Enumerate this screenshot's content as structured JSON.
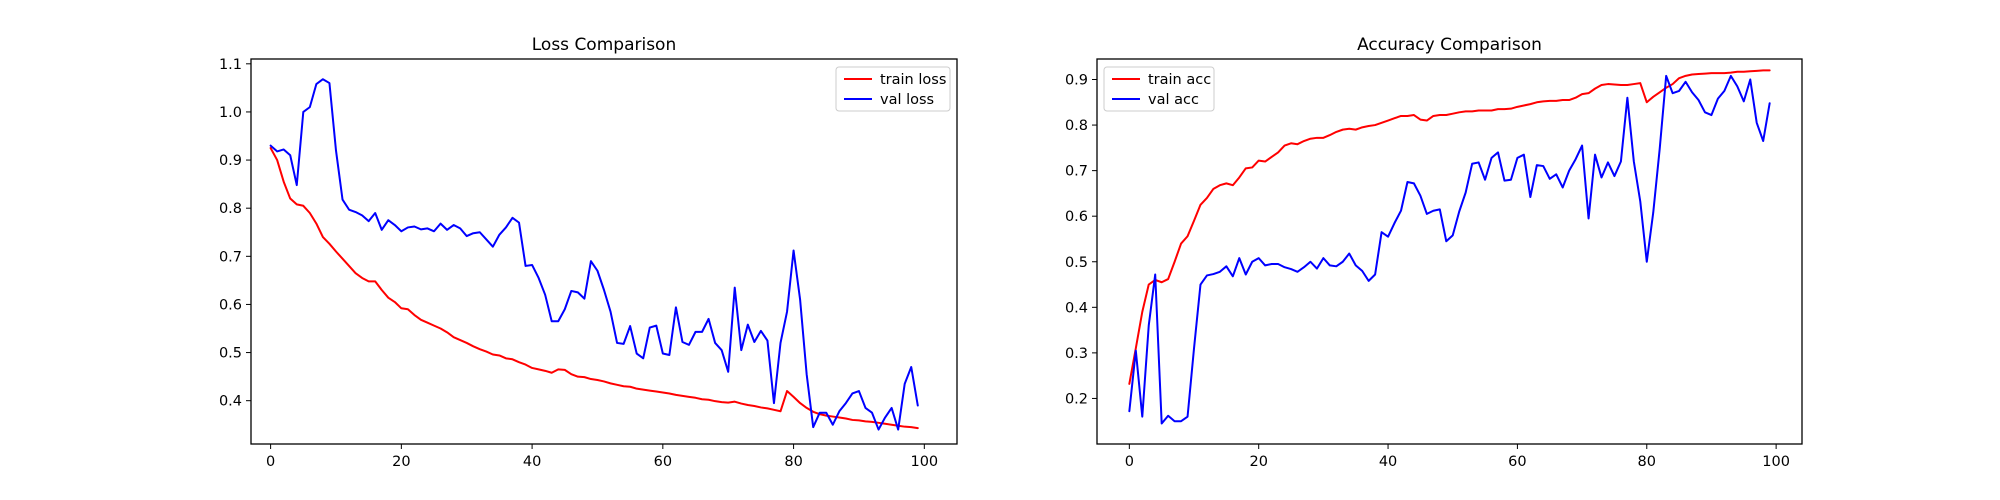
{
  "chart_data": [
    {
      "type": "line",
      "title": "Loss Comparison",
      "xlabel": "",
      "ylabel": "",
      "xlim": [
        -3,
        105
      ],
      "ylim": [
        0.31,
        1.11
      ],
      "xticks": [
        0,
        20,
        40,
        60,
        80,
        100
      ],
      "yticks": [
        0.4,
        0.5,
        0.6,
        0.7,
        0.8,
        0.9,
        1.0,
        1.1
      ],
      "ytick_labels": [
        "0.4",
        "0.5",
        "0.6",
        "0.7",
        "0.8",
        "0.9",
        "1.0",
        "1.1"
      ],
      "legend_position": "top-right",
      "grid": false,
      "series": [
        {
          "name": "train loss",
          "color": "#ff0000",
          "x": [
            0,
            1,
            2,
            3,
            4,
            5,
            6,
            7,
            8,
            9,
            10,
            11,
            12,
            13,
            14,
            15,
            16,
            17,
            18,
            19,
            20,
            21,
            22,
            23,
            24,
            25,
            26,
            27,
            28,
            29,
            30,
            31,
            32,
            33,
            34,
            35,
            36,
            37,
            38,
            39,
            40,
            41,
            42,
            43,
            44,
            45,
            46,
            47,
            48,
            49,
            50,
            51,
            52,
            53,
            54,
            55,
            56,
            57,
            58,
            59,
            60,
            61,
            62,
            63,
            64,
            65,
            66,
            67,
            68,
            69,
            70,
            71,
            72,
            73,
            74,
            75,
            76,
            77,
            78,
            79,
            80,
            81,
            82,
            83,
            84,
            85,
            86,
            87,
            88,
            89,
            90,
            91,
            92,
            93,
            94,
            95,
            96,
            97,
            98,
            99
          ],
          "values": [
            0.925,
            0.9,
            0.855,
            0.82,
            0.808,
            0.805,
            0.79,
            0.768,
            0.74,
            0.726,
            0.71,
            0.695,
            0.68,
            0.665,
            0.655,
            0.648,
            0.648,
            0.63,
            0.614,
            0.605,
            0.592,
            0.59,
            0.578,
            0.568,
            0.562,
            0.556,
            0.55,
            0.542,
            0.532,
            0.526,
            0.52,
            0.513,
            0.507,
            0.502,
            0.496,
            0.494,
            0.488,
            0.486,
            0.48,
            0.475,
            0.468,
            0.465,
            0.462,
            0.458,
            0.465,
            0.464,
            0.455,
            0.45,
            0.449,
            0.445,
            0.443,
            0.44,
            0.436,
            0.433,
            0.43,
            0.429,
            0.425,
            0.423,
            0.421,
            0.419,
            0.417,
            0.415,
            0.412,
            0.41,
            0.408,
            0.406,
            0.403,
            0.402,
            0.399,
            0.397,
            0.396,
            0.398,
            0.394,
            0.391,
            0.389,
            0.386,
            0.384,
            0.381,
            0.378,
            0.42,
            0.408,
            0.395,
            0.385,
            0.377,
            0.372,
            0.369,
            0.367,
            0.365,
            0.363,
            0.36,
            0.359,
            0.357,
            0.356,
            0.354,
            0.352,
            0.35,
            0.348,
            0.346,
            0.345,
            0.343
          ]
        },
        {
          "name": "val loss",
          "color": "#0000ff",
          "x": [
            0,
            1,
            2,
            3,
            4,
            5,
            6,
            7,
            8,
            9,
            10,
            11,
            12,
            13,
            14,
            15,
            16,
            17,
            18,
            19,
            20,
            21,
            22,
            23,
            24,
            25,
            26,
            27,
            28,
            29,
            30,
            31,
            32,
            33,
            34,
            35,
            36,
            37,
            38,
            39,
            40,
            41,
            42,
            43,
            44,
            45,
            46,
            47,
            48,
            49,
            50,
            51,
            52,
            53,
            54,
            55,
            56,
            57,
            58,
            59,
            60,
            61,
            62,
            63,
            64,
            65,
            66,
            67,
            68,
            69,
            70,
            71,
            72,
            73,
            74,
            75,
            76,
            77,
            78,
            79,
            80,
            81,
            82,
            83,
            84,
            85,
            86,
            87,
            88,
            89,
            90,
            91,
            92,
            93,
            94,
            95,
            96,
            97,
            98,
            99
          ],
          "values": [
            0.93,
            0.918,
            0.922,
            0.91,
            0.848,
            1.0,
            1.01,
            1.058,
            1.068,
            1.06,
            0.92,
            0.818,
            0.797,
            0.792,
            0.785,
            0.773,
            0.79,
            0.755,
            0.775,
            0.765,
            0.752,
            0.76,
            0.762,
            0.756,
            0.758,
            0.752,
            0.768,
            0.755,
            0.765,
            0.758,
            0.742,
            0.748,
            0.75,
            0.735,
            0.72,
            0.745,
            0.76,
            0.78,
            0.77,
            0.68,
            0.682,
            0.655,
            0.62,
            0.565,
            0.565,
            0.59,
            0.628,
            0.625,
            0.612,
            0.69,
            0.67,
            0.63,
            0.585,
            0.52,
            0.518,
            0.555,
            0.498,
            0.488,
            0.552,
            0.556,
            0.498,
            0.495,
            0.594,
            0.522,
            0.516,
            0.543,
            0.543,
            0.57,
            0.52,
            0.505,
            0.46,
            0.635,
            0.505,
            0.558,
            0.522,
            0.545,
            0.525,
            0.395,
            0.52,
            0.585,
            0.712,
            0.61,
            0.455,
            0.345,
            0.375,
            0.375,
            0.35,
            0.378,
            0.395,
            0.415,
            0.42,
            0.385,
            0.375,
            0.34,
            0.365,
            0.385,
            0.34,
            0.435,
            0.47,
            0.39
          ]
        }
      ]
    },
    {
      "type": "line",
      "title": "Accuracy Comparison",
      "xlabel": "",
      "ylabel": "",
      "xlim": [
        -5,
        104
      ],
      "ylim": [
        0.1,
        0.945
      ],
      "xticks": [
        0,
        20,
        40,
        60,
        80,
        100
      ],
      "yticks": [
        0.2,
        0.3,
        0.4,
        0.5,
        0.6,
        0.7,
        0.8,
        0.9
      ],
      "ytick_labels": [
        "0.2",
        "0.3",
        "0.4",
        "0.5",
        "0.6",
        "0.7",
        "0.8",
        "0.9"
      ],
      "legend_position": "top-left",
      "grid": false,
      "series": [
        {
          "name": "train acc",
          "color": "#ff0000",
          "x": [
            0,
            1,
            2,
            3,
            4,
            5,
            6,
            7,
            8,
            9,
            10,
            11,
            12,
            13,
            14,
            15,
            16,
            17,
            18,
            19,
            20,
            21,
            22,
            23,
            24,
            25,
            26,
            27,
            28,
            29,
            30,
            31,
            32,
            33,
            34,
            35,
            36,
            37,
            38,
            39,
            40,
            41,
            42,
            43,
            44,
            45,
            46,
            47,
            48,
            49,
            50,
            51,
            52,
            53,
            54,
            55,
            56,
            57,
            58,
            59,
            60,
            61,
            62,
            63,
            64,
            65,
            66,
            67,
            68,
            69,
            70,
            71,
            72,
            73,
            74,
            75,
            76,
            77,
            78,
            79,
            80,
            81,
            82,
            83,
            84,
            85,
            86,
            87,
            88,
            89,
            90,
            91,
            92,
            93,
            94,
            95,
            96,
            97,
            98,
            99
          ],
          "values": [
            0.232,
            0.31,
            0.39,
            0.45,
            0.46,
            0.455,
            0.462,
            0.5,
            0.54,
            0.556,
            0.59,
            0.625,
            0.64,
            0.66,
            0.668,
            0.672,
            0.668,
            0.685,
            0.705,
            0.707,
            0.722,
            0.72,
            0.73,
            0.74,
            0.755,
            0.76,
            0.758,
            0.765,
            0.77,
            0.772,
            0.772,
            0.778,
            0.785,
            0.79,
            0.792,
            0.79,
            0.795,
            0.798,
            0.8,
            0.805,
            0.81,
            0.815,
            0.82,
            0.82,
            0.822,
            0.812,
            0.81,
            0.82,
            0.822,
            0.822,
            0.825,
            0.828,
            0.83,
            0.83,
            0.832,
            0.832,
            0.832,
            0.835,
            0.835,
            0.836,
            0.84,
            0.843,
            0.846,
            0.85,
            0.852,
            0.853,
            0.853,
            0.855,
            0.855,
            0.86,
            0.868,
            0.87,
            0.88,
            0.888,
            0.89,
            0.889,
            0.888,
            0.888,
            0.89,
            0.892,
            0.85,
            0.862,
            0.872,
            0.882,
            0.89,
            0.903,
            0.908,
            0.911,
            0.912,
            0.913,
            0.914,
            0.914,
            0.914,
            0.915,
            0.917,
            0.917,
            0.918,
            0.919,
            0.92,
            0.92
          ]
        },
        {
          "name": "val acc",
          "color": "#0000ff",
          "x": [
            0,
            1,
            2,
            3,
            4,
            5,
            6,
            7,
            8,
            9,
            10,
            11,
            12,
            13,
            14,
            15,
            16,
            17,
            18,
            19,
            20,
            21,
            22,
            23,
            24,
            25,
            26,
            27,
            28,
            29,
            30,
            31,
            32,
            33,
            34,
            35,
            36,
            37,
            38,
            39,
            40,
            41,
            42,
            43,
            44,
            45,
            46,
            47,
            48,
            49,
            50,
            51,
            52,
            53,
            54,
            55,
            56,
            57,
            58,
            59,
            60,
            61,
            62,
            63,
            64,
            65,
            66,
            67,
            68,
            69,
            70,
            71,
            72,
            73,
            74,
            75,
            76,
            77,
            78,
            79,
            80,
            81,
            82,
            83,
            84,
            85,
            86,
            87,
            88,
            89,
            90,
            91,
            92,
            93,
            94,
            95,
            96,
            97,
            98,
            99
          ],
          "values": [
            0.172,
            0.305,
            0.16,
            0.36,
            0.472,
            0.145,
            0.162,
            0.15,
            0.15,
            0.16,
            0.31,
            0.45,
            0.47,
            0.473,
            0.478,
            0.49,
            0.468,
            0.508,
            0.472,
            0.5,
            0.508,
            0.492,
            0.495,
            0.495,
            0.488,
            0.484,
            0.478,
            0.488,
            0.5,
            0.485,
            0.508,
            0.492,
            0.49,
            0.5,
            0.518,
            0.492,
            0.48,
            0.458,
            0.472,
            0.565,
            0.555,
            0.585,
            0.612,
            0.675,
            0.672,
            0.645,
            0.605,
            0.612,
            0.615,
            0.545,
            0.558,
            0.61,
            0.652,
            0.715,
            0.718,
            0.68,
            0.728,
            0.74,
            0.678,
            0.68,
            0.728,
            0.735,
            0.642,
            0.712,
            0.71,
            0.682,
            0.692,
            0.663,
            0.7,
            0.725,
            0.755,
            0.595,
            0.735,
            0.685,
            0.718,
            0.688,
            0.72,
            0.86,
            0.72,
            0.632,
            0.5,
            0.608,
            0.748,
            0.908,
            0.87,
            0.875,
            0.895,
            0.872,
            0.855,
            0.828,
            0.822,
            0.858,
            0.875,
            0.908,
            0.885,
            0.852,
            0.9,
            0.805,
            0.765,
            0.848
          ]
        }
      ]
    }
  ]
}
